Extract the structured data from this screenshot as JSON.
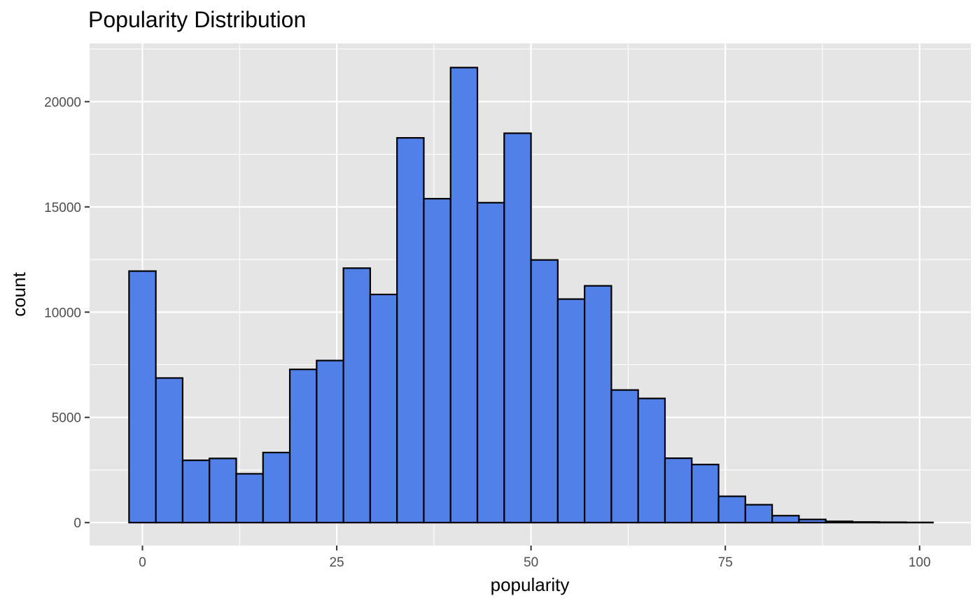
{
  "chart_data": {
    "type": "bar",
    "title": "Popularity Distribution",
    "xlabel": "popularity",
    "ylabel": "count",
    "xlim": [
      -6.8,
      106.6
    ],
    "ylim": [
      -1090,
      22770
    ],
    "x_ticks": [
      0,
      25,
      50,
      75,
      100
    ],
    "y_ticks": [
      0,
      5000,
      10000,
      15000,
      20000
    ],
    "grid": true,
    "legend": "none",
    "bin_width": 3.448,
    "bin_start": -1.724,
    "values": [
      11950,
      6870,
      2960,
      3050,
      2320,
      3330,
      7280,
      7700,
      12090,
      10840,
      18280,
      15390,
      21620,
      15200,
      18500,
      12480,
      10620,
      11250,
      6300,
      5900,
      3060,
      2760,
      1250,
      850,
      330,
      150,
      60,
      30,
      20,
      10
    ],
    "colors": {
      "bar_fill": "#5080E8",
      "bar_stroke": "#000000",
      "panel_background": "#E5E5E5",
      "grid": "#FFFFFF"
    }
  }
}
